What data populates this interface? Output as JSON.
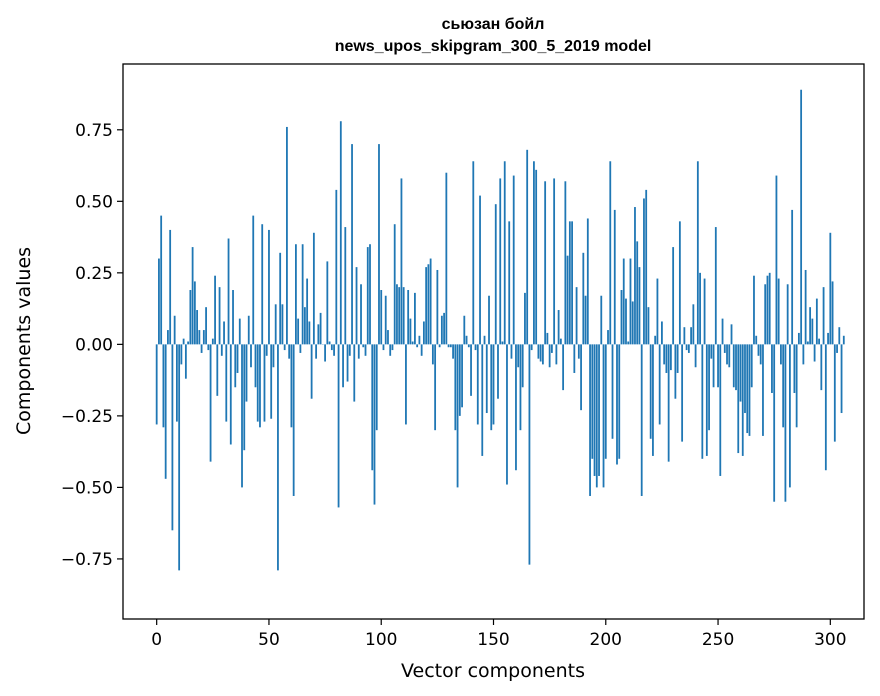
{
  "chart_data": {
    "type": "bar",
    "title": "сьюзан бойл",
    "subtitle": "news_upos_skipgram_300_5_2019 model",
    "xlabel": "Vector components",
    "ylabel": "Components values",
    "xlim": [
      -15,
      315
    ],
    "ylim": [
      -0.96,
      0.98
    ],
    "x_ticks": [
      0,
      50,
      100,
      150,
      200,
      250,
      300
    ],
    "y_ticks": [
      -0.75,
      -0.5,
      -0.25,
      0.0,
      0.25,
      0.5,
      0.75
    ],
    "x_tick_labels": [
      "0",
      "50",
      "100",
      "150",
      "200",
      "250",
      "300"
    ],
    "y_tick_labels": [
      "−0.75",
      "−0.50",
      "−0.25",
      "0.00",
      "0.25",
      "0.50",
      "0.75"
    ],
    "bar_color": "#1f77b4",
    "grid": false,
    "values": [
      -0.28,
      0.3,
      0.45,
      -0.29,
      -0.47,
      0.05,
      0.4,
      -0.65,
      0.1,
      -0.27,
      -0.79,
      -0.07,
      0.02,
      -0.12,
      0.01,
      0.19,
      0.34,
      0.22,
      0.12,
      0.05,
      -0.03,
      0.05,
      0.13,
      -0.02,
      -0.41,
      0.02,
      0.24,
      -0.18,
      0.2,
      -0.04,
      0.08,
      -0.27,
      0.37,
      -0.35,
      0.19,
      -0.15,
      -0.1,
      0.09,
      -0.5,
      -0.37,
      -0.2,
      0.1,
      -0.08,
      0.45,
      -0.15,
      -0.27,
      -0.29,
      0.42,
      -0.27,
      -0.04,
      0.4,
      -0.26,
      -0.08,
      0.14,
      -0.79,
      0.32,
      0.14,
      -0.02,
      0.76,
      -0.05,
      -0.29,
      -0.53,
      0.35,
      0.09,
      -0.03,
      0.35,
      0.13,
      0.23,
      0.08,
      -0.19,
      0.39,
      -0.05,
      0.07,
      0.11,
      0.0,
      -0.06,
      0.29,
      0.01,
      -0.02,
      -0.04,
      0.54,
      -0.57,
      0.78,
      -0.15,
      0.41,
      -0.13,
      -0.04,
      0.7,
      -0.2,
      0.27,
      -0.05,
      0.21,
      -0.01,
      -0.04,
      0.34,
      0.35,
      -0.44,
      -0.56,
      -0.3,
      0.7,
      0.19,
      -0.02,
      0.17,
      0.05,
      -0.04,
      -0.02,
      0.42,
      0.21,
      0.2,
      0.58,
      0.2,
      -0.28,
      0.19,
      0.09,
      0.01,
      0.18,
      -0.01,
      0.03,
      -0.04,
      0.08,
      0.27,
      0.28,
      0.3,
      -0.07,
      -0.3,
      0.26,
      -0.01,
      0.1,
      0.11,
      0.6,
      -0.01,
      -0.01,
      -0.05,
      -0.3,
      -0.5,
      -0.25,
      -0.22,
      0.1,
      0.03,
      -0.01,
      -0.18,
      0.64,
      -0.02,
      -0.28,
      0.52,
      -0.39,
      0.03,
      -0.24,
      0.17,
      -0.3,
      -0.28,
      0.49,
      -0.19,
      0.58,
      0.01,
      0.64,
      -0.49,
      0.43,
      -0.05,
      0.59,
      -0.44,
      -0.08,
      -0.3,
      -0.15,
      0.18,
      0.68,
      -0.77,
      -0.02,
      0.64,
      0.61,
      -0.05,
      -0.06,
      -0.07,
      0.57,
      0.04,
      -0.08,
      -0.03,
      0.58,
      -0.07,
      0.12,
      0.02,
      -0.16,
      0.57,
      0.31,
      0.43,
      0.43,
      -0.1,
      0.2,
      -0.05,
      -0.23,
      0.32,
      0.17,
      0.44,
      -0.53,
      -0.4,
      -0.46,
      -0.5,
      -0.46,
      0.17,
      -0.5,
      -0.4,
      0.05,
      0.64,
      -0.33,
      0.47,
      -0.42,
      -0.4,
      0.19,
      0.3,
      0.16,
      0.01,
      0.3,
      0.15,
      0.48,
      0.36,
      0.27,
      -0.53,
      0.51,
      0.54,
      0.13,
      -0.33,
      -0.39,
      0.03,
      0.23,
      -0.28,
      0.08,
      -0.07,
      -0.1,
      -0.41,
      -0.09,
      0.34,
      -0.19,
      -0.1,
      0.43,
      -0.34,
      0.06,
      -0.02,
      -0.03,
      0.06,
      0.14,
      -0.08,
      0.64,
      0.25,
      -0.4,
      0.23,
      -0.39,
      -0.3,
      -0.05,
      -0.15,
      0.41,
      -0.15,
      -0.46,
      0.09,
      -0.03,
      -0.07,
      -0.08,
      0.07,
      -0.15,
      -0.16,
      -0.38,
      -0.2,
      -0.39,
      -0.24,
      -0.31,
      -0.32,
      -0.15,
      0.24,
      0.03,
      -0.04,
      -0.07,
      -0.32,
      0.21,
      0.24,
      0.25,
      -0.17,
      -0.55,
      0.59,
      0.23,
      -0.07,
      -0.29,
      -0.55,
      0.21,
      -0.5,
      0.47,
      -0.17,
      -0.29,
      0.04,
      0.89,
      -0.07,
      0.26,
      0.01,
      0.13,
      0.09,
      -0.06,
      0.16,
      0.02,
      -0.16,
      0.2,
      -0.44,
      0.04,
      0.39,
      0.22,
      -0.34,
      -0.03,
      0.06,
      -0.24,
      0.03
    ]
  }
}
